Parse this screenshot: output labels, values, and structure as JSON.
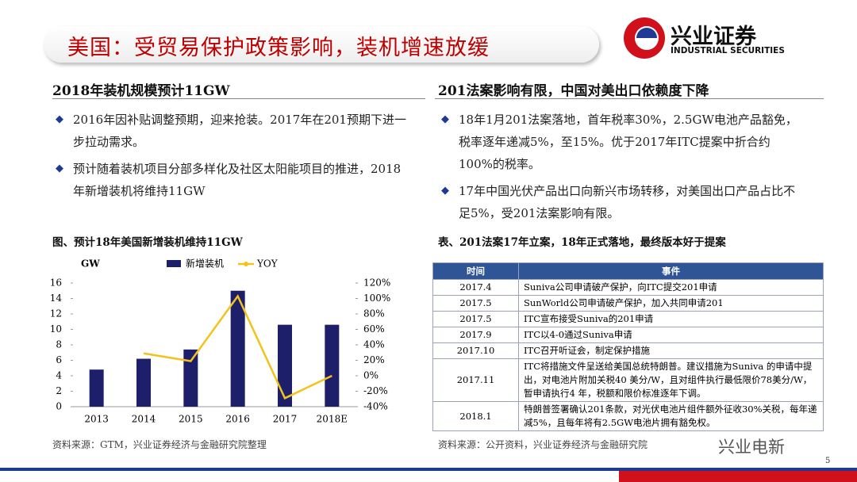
{
  "header": {
    "title": "美国：受贸易保护政策影响，装机增速放缓",
    "logo_cn": "兴业证券",
    "logo_en": "INDUSTRIAL SECURITIES"
  },
  "left": {
    "heading": "2018年装机规模预计11GW",
    "bullets": [
      "2016年因补贴调整预期，迎来抢装。2017年在201预期下进一步拉动需求。",
      "预计随着装机项目分部多样化及社区太阳能项目的推进，2018年新增装机将维持11GW"
    ],
    "source": "资料来源：GTM，兴业证券经济与金融研究院整理"
  },
  "chart_data": {
    "type": "bar",
    "title": "图、预计18年美国新增装机维持11GW",
    "y_label": "GW",
    "categories": [
      "2013",
      "2014",
      "2015",
      "2016",
      "2017",
      "2018E"
    ],
    "series": [
      {
        "name": "新增装机",
        "type": "bar",
        "color": "#1d1f6b",
        "values": [
          4.8,
          6.2,
          7.4,
          15,
          10.6,
          10.6
        ]
      },
      {
        "name": "YOY",
        "type": "line",
        "axis": "y2",
        "color": "#f2c31b",
        "values": [
          null,
          29,
          19,
          103,
          -29,
          0
        ]
      }
    ],
    "ylim": [
      0,
      16
    ],
    "yticks": [
      0,
      2,
      4,
      6,
      8,
      10,
      12,
      14,
      16
    ],
    "y2lim": [
      -40,
      120
    ],
    "y2ticks": [
      {
        "value": -40,
        "label": "-40%"
      },
      {
        "value": -20,
        "label": "-20%"
      },
      {
        "value": 0,
        "label": "0%"
      },
      {
        "value": 20,
        "label": "20%"
      },
      {
        "value": 40,
        "label": "40%"
      },
      {
        "value": 60,
        "label": "60%"
      },
      {
        "value": 80,
        "label": "80%"
      },
      {
        "value": 100,
        "label": "100%"
      },
      {
        "value": 120,
        "label": "120%"
      }
    ]
  },
  "right": {
    "heading": "201法案影响有限，中国对美出口依赖度下降",
    "bullets": [
      "18年1月201法案落地，首年税率30%，2.5GW电池产品豁免，税率逐年递减5%，至15%。优于2017年ITC提案中折合约100%的税率。",
      "17年中国光伏产品出口向新兴市场转移，对美国出口产品占比不足5%，受201法案影响有限。"
    ],
    "source": "资料来源：公开资料，兴业证券经济与金融研究院"
  },
  "table": {
    "title": "表、201法案17年立案，18年正式落地，最终版本好于提案",
    "columns": [
      "时间",
      "事件"
    ],
    "rows": [
      [
        "2017.4",
        "Suniva公司申请破产保护，向ITC提交201申请"
      ],
      [
        "2017.5",
        "SunWorld公司申请破产保护，加入共同申请201"
      ],
      [
        "2017.5",
        "ITC宣布接受Suniva的201申请"
      ],
      [
        "2017.9",
        "ITC以4-0通过Suniva申请"
      ],
      [
        "2017.10",
        "ITC召开听证会，制定保护措施"
      ],
      [
        "2017.11",
        "ITC将措施文件呈送给美国总统特朗普。建议措施为Suniva 的申请中提出，对电池片附加关税40 美分/W，且对组件执行最低限价78美分/W，暂申请执行4 年，税额和限价标准逐年下调。"
      ],
      [
        "2018.1",
        "特朗普签署确认201条款，对光伏电池片组件额外征收30%关税，每年递减5%，且每年将有2.5GW电池片拥有豁免权。"
      ]
    ]
  },
  "footer": {
    "watermark": "兴业电新",
    "page": "5"
  }
}
